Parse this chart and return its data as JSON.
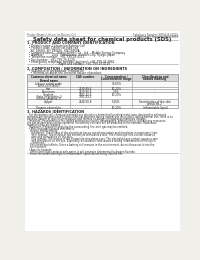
{
  "bg_color": "#f0efea",
  "page_bg": "#ffffff",
  "header_top_left": "Product Name: Lithium Ion Battery Cell",
  "header_top_right": "Substance Number: SBR-048-00010\nEstablished / Revision: Dec.7.2010",
  "title": "Safety data sheet for chemical products (SDS)",
  "section1_title": "1. PRODUCT AND COMPANY IDENTIFICATION",
  "section1_lines": [
    "  • Product name: Lithium Ion Battery Cell",
    "  • Product code: Cylindrical-type cell",
    "    SIY 18650J, SIY 18650U, SIY 18650A",
    "  • Company name:    Sanyo Electric Co., Ltd.,  Mobile Energy Company",
    "  • Address:          2001  Kamikosaka, Sumoto-City, Hyogo, Japan",
    "  • Telephone number:  +81-799-26-4111",
    "  • Fax number:  +81-799-26-4120",
    "  • Emergency telephone number (daytime): +81-799-26-3962",
    "                                   (Night and holiday): +81-799-26-4120"
  ],
  "section2_title": "2. COMPOSITION / INFORMATION ON INGREDIENTS",
  "section2_sub": "  • Substance or preparation: Preparation",
  "section2_sub2": "    • Information about the chemical nature of product:",
  "table_headers": [
    "Common chemical name\n\nBrand name",
    "CAS number",
    "Concentration /\nConcentration range",
    "Classification and\nhazard labeling"
  ],
  "table_rows": [
    [
      "Lithium cobalt oxide\n(LiMn-Co-P-NiO2)",
      "-",
      "30-60%",
      ""
    ],
    [
      "Iron",
      "7439-89-6",
      "10-20%",
      "-"
    ],
    [
      "Aluminum",
      "7429-90-5",
      "2-5%",
      "-"
    ],
    [
      "Graphite\n(flake or graphite-I)\n(in-film graphite-1)",
      "7782-42-5\n7782-43-2",
      "10-20%",
      ""
    ],
    [
      "Copper",
      "7440-50-8",
      "5-15%",
      "Sensitization of the skin\ngroup No.2"
    ],
    [
      "Organic electrolyte",
      "-",
      "10-20%",
      "Inflammable liquid"
    ]
  ],
  "section3_title": "3. HAZARDS IDENTIFICATION",
  "section3_lines": [
    "   For the battery cell, chemical materials are stored in a hermetically sealed metal case, designed to withstand",
    "temperature variations and electro-chemical reactions during normal use. As a result, during normal use, there is no",
    "physical danger of ignition or explosion and there is no danger of hazardous materials leakage.",
    "   However, if exposed to a fire, added mechanical shocks, decomposed, written electric without any measures,",
    "the gas release vent can be operated. The battery cell case will be breached at the extreme. Hazardous",
    "materials may be released.",
    "   Moreover, if heated strongly by the surrounding fire, emit gas may be emitted."
  ],
  "section3_effects_lines": [
    "  • Most important hazard and effects:",
    "    Human health effects:",
    "      Inhalation: The release of the electrolyte has an anesthesia action and stimulates in respiratory tract.",
    "      Skin contact: The release of the electrolyte stimulates a skin. The electrolyte skin contact causes a",
    "      sore and stimulation on the skin.",
    "      Eye contact: The release of the electrolyte stimulates eyes. The electrolyte eye contact causes a sore",
    "      and stimulation on the eye. Especially, a substance that causes a strong inflammation of the eye is",
    "      contained.",
    "    Environmental effects: Since a battery cell remains in the environment, do not throw out it into the",
    "    environment."
  ],
  "section3_specific_lines": [
    "  • Specific hazards:",
    "    If the electrolyte contacts with water, it will generate detrimental hydrogen fluoride.",
    "    Since the used electrolyte is inflammable liquid, do not bring close to fire."
  ],
  "line_color": "#999999",
  "text_color": "#222222",
  "header_color": "#555555",
  "table_header_bg": "#d8d8d8"
}
